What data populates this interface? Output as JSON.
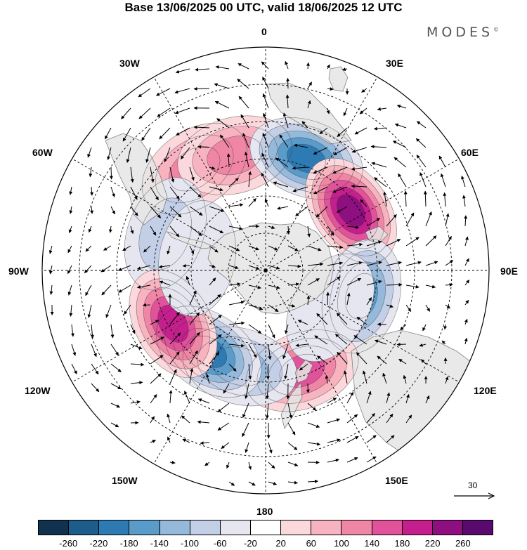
{
  "title": "Base 13/06/2025 00 UTC, valid 18/06/2025 12 UTC",
  "brand": "MODES",
  "brand_mark": "©",
  "longitude_labels": {
    "n0": "0",
    "e30": "30E",
    "e60": "60E",
    "e90": "90E",
    "e120": "120E",
    "e150": "150E",
    "s180": "180",
    "w150": "150W",
    "w120": "120W",
    "w90": "90W",
    "w60": "60W",
    "w30": "30W"
  },
  "reference_vector": {
    "value": "30"
  },
  "colorbar": {
    "colors": [
      "#10324f",
      "#1c5d8c",
      "#2e7bb4",
      "#5a9bca",
      "#94b9da",
      "#c3cfe6",
      "#e6e6f1",
      "#ffffff",
      "#fbd8dc",
      "#f7b3bf",
      "#ef86a6",
      "#e0529a",
      "#c51f8e",
      "#8e0f7f",
      "#5a0a6e"
    ],
    "tick_labels": [
      "-260",
      "-220",
      "-180",
      "-140",
      "-100",
      "-60",
      "-20",
      "20",
      "60",
      "100",
      "140",
      "180",
      "220",
      "260"
    ]
  },
  "colors": {
    "land": "#e6e6e6",
    "coastline": "#6f6f6f",
    "grid": "#000000"
  },
  "anomaly_centers": [
    {
      "lon": -35,
      "lat": -40,
      "value": 120
    },
    {
      "lon": -15,
      "lat": -42,
      "value": 100
    },
    {
      "lon": -70,
      "lat": -47,
      "value": -80
    },
    {
      "lon": 20,
      "lat": -42,
      "value": -180
    },
    {
      "lon": 55,
      "lat": -48,
      "value": 220
    },
    {
      "lon": 105,
      "lat": -50,
      "value": -140
    },
    {
      "lon": 160,
      "lat": -47,
      "value": 140
    },
    {
      "lon": -165,
      "lat": -50,
      "value": -120
    },
    {
      "lon": -145,
      "lat": -50,
      "value": -200
    },
    {
      "lon": -120,
      "lat": -47,
      "value": 200
    },
    {
      "lon": -80,
      "lat": -62,
      "value": -40
    },
    {
      "lon": 120,
      "lat": -60,
      "value": -40
    }
  ]
}
